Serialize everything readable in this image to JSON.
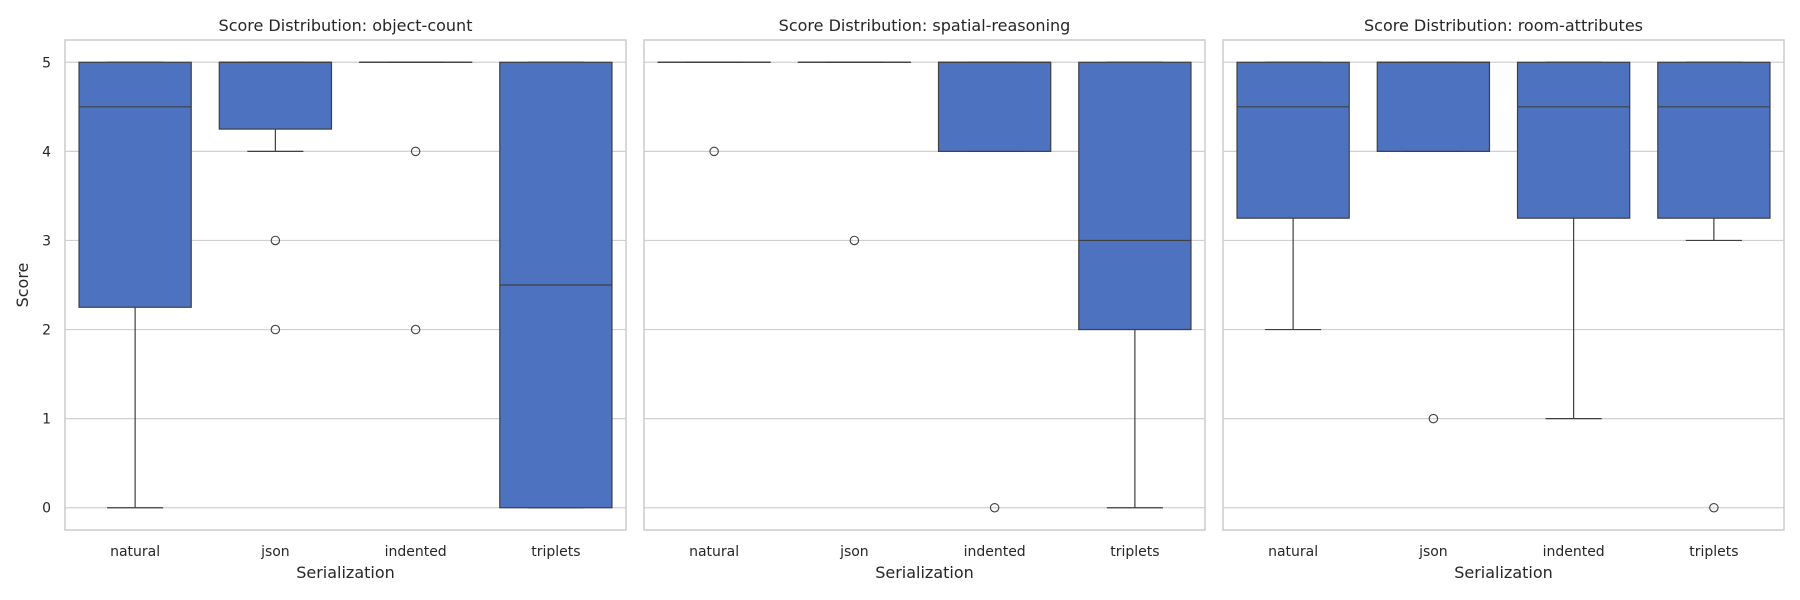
{
  "chart_data": {
    "type": "box",
    "y_label": "Score",
    "x_label": "Serialization",
    "categories": [
      "natural",
      "json",
      "indented",
      "triplets"
    ],
    "y_ticks": [
      0,
      1,
      2,
      3,
      4,
      5
    ],
    "ylim": [
      -0.25,
      5.25
    ],
    "grid": true,
    "box_color": "#4c72c0",
    "line_color": "#3f3f3f",
    "panels": [
      {
        "title": "Score Distribution: object-count",
        "boxes": [
          {
            "category": "natural",
            "whisker_low": 0,
            "q1": 2.25,
            "median": 4.5,
            "q3": 5,
            "whisker_high": 5,
            "outliers": []
          },
          {
            "category": "json",
            "whisker_low": 4,
            "q1": 4.25,
            "median": 5,
            "q3": 5,
            "whisker_high": 5,
            "outliers": [
              3,
              2
            ]
          },
          {
            "category": "indented",
            "whisker_low": 5,
            "q1": 5,
            "median": 5,
            "q3": 5,
            "whisker_high": 5,
            "outliers": [
              4,
              2
            ]
          },
          {
            "category": "triplets",
            "whisker_low": 0,
            "q1": 0,
            "median": 2.5,
            "q3": 5,
            "whisker_high": 5,
            "outliers": []
          }
        ]
      },
      {
        "title": "Score Distribution: spatial-reasoning",
        "boxes": [
          {
            "category": "natural",
            "whisker_low": 5,
            "q1": 5,
            "median": 5,
            "q3": 5,
            "whisker_high": 5,
            "outliers": [
              4
            ]
          },
          {
            "category": "json",
            "whisker_low": 5,
            "q1": 5,
            "median": 5,
            "q3": 5,
            "whisker_high": 5,
            "outliers": [
              3
            ]
          },
          {
            "category": "indented",
            "whisker_low": 4,
            "q1": 4,
            "median": 5,
            "q3": 5,
            "whisker_high": 5,
            "outliers": [
              0
            ]
          },
          {
            "category": "triplets",
            "whisker_low": 0,
            "q1": 2,
            "median": 3,
            "q3": 5,
            "whisker_high": 5,
            "outliers": []
          }
        ]
      },
      {
        "title": "Score Distribution: room-attributes",
        "boxes": [
          {
            "category": "natural",
            "whisker_low": 2,
            "q1": 3.25,
            "median": 4.5,
            "q3": 5,
            "whisker_high": 5,
            "outliers": []
          },
          {
            "category": "json",
            "whisker_low": 4,
            "q1": 4,
            "median": 5,
            "q3": 5,
            "whisker_high": 5,
            "outliers": [
              1
            ]
          },
          {
            "category": "indented",
            "whisker_low": 1,
            "q1": 3.25,
            "median": 4.5,
            "q3": 5,
            "whisker_high": 5,
            "outliers": []
          },
          {
            "category": "triplets",
            "whisker_low": 3,
            "q1": 3.25,
            "median": 4.5,
            "q3": 5,
            "whisker_high": 5,
            "outliers": [
              0
            ]
          }
        ]
      }
    ]
  }
}
